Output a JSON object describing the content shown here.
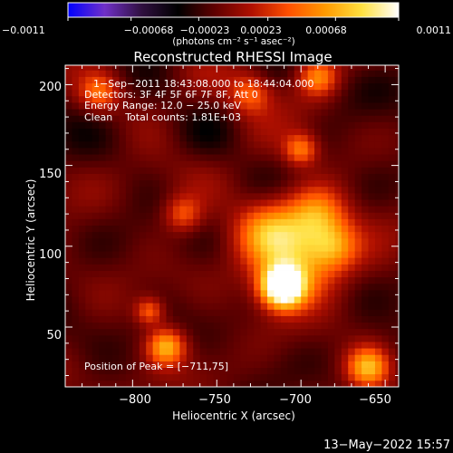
{
  "chart_data": {
    "type": "heatmap",
    "title": "Reconstructed RHESSI Image",
    "xlabel": "Heliocentric X (arcsec)",
    "ylabel": "Heliocentric Y (arcsec)",
    "xlim": [
      -840,
      -642
    ],
    "ylim": [
      13,
      212
    ],
    "x_ticks": [
      -800,
      -750,
      -700,
      -650
    ],
    "x_tick_labels": [
      "−800",
      "−750",
      "−700",
      "−650"
    ],
    "y_ticks": [
      50,
      100,
      150,
      200
    ],
    "y_tick_labels": [
      "50",
      "100",
      "150",
      "200"
    ],
    "colorbar": {
      "range": [
        -0.0011,
        0.0011
      ],
      "tick_labels": [
        "−0.0011",
        "−0.00068",
        "−0.00023",
        "0.00023",
        "0.00068",
        "0.0011"
      ],
      "units_label": "(photons cm⁻² s⁻¹ asec⁻²)",
      "colormap": [
        "#0000ff",
        "#7030c8",
        "#301040",
        "#000000",
        "#600000",
        "#b01000",
        "#ff5000",
        "#ff9a00",
        "#ffe040",
        "#ffffff"
      ]
    },
    "annotations": [
      "1−Sep−2011 18:43:08.000 to 18:44:04.000",
      "Detectors: 3F 4F 5F 6F 7F 8F, Att 0",
      "Energy Range: 12.0 − 25.0 keV",
      "Clean    Total counts: 1.81E+03"
    ],
    "peak_label": "Position of Peak = [−711,75]",
    "peak_position": [
      -711,
      75
    ],
    "grid": false
  },
  "footer": {
    "date": "13−May−2022 15:57"
  }
}
